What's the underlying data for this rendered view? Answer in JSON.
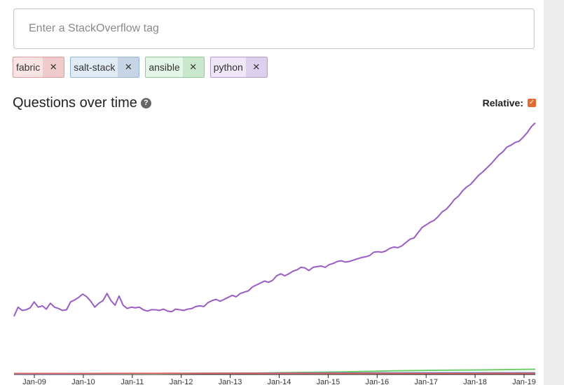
{
  "search": {
    "placeholder": "Enter a StackOverflow tag"
  },
  "tags": [
    {
      "label": "fabric",
      "remove": "✕",
      "color": "#e39a9a"
    },
    {
      "label": "salt-stack",
      "remove": "✕",
      "color": "#8fb6e0"
    },
    {
      "label": "ansible",
      "remove": "✕",
      "color": "#86d38e"
    },
    {
      "label": "python",
      "remove": "✕",
      "color": "#b79ad8"
    }
  ],
  "chart_header": {
    "title": "Questions over time",
    "help_icon": "question-circle-icon",
    "relative_label": "Relative:",
    "relative_checked": true
  },
  "chart_data": {
    "type": "line",
    "title": "Questions over time",
    "xlabel": "",
    "ylabel": "",
    "x_ticks": [
      "Jan-09",
      "Jan-10",
      "Jan-11",
      "Jan-12",
      "Jan-13",
      "Jan-14",
      "Jan-15",
      "Jan-16",
      "Jan-17",
      "Jan-18",
      "Jan-19"
    ],
    "x_start": "2008-08",
    "grid": false,
    "series": [
      {
        "name": "python",
        "color": "#9b5cc6",
        "values": [
          8.8,
          10.2,
          9.7,
          9.8,
          10.1,
          11.0,
          10.2,
          10.4,
          9.9,
          10.8,
          10.2,
          10.0,
          9.7,
          9.8,
          11.0,
          11.3,
          11.7,
          12.2,
          11.8,
          11.1,
          10.2,
          10.8,
          11.2,
          12.3,
          11.2,
          10.5,
          11.9,
          10.5,
          10.0,
          10.2,
          10.1,
          10.2,
          9.8,
          9.6,
          9.8,
          9.8,
          9.7,
          9.9,
          9.6,
          9.5,
          9.9,
          9.8,
          9.7,
          9.9,
          10.0,
          10.3,
          10.4,
          10.3,
          10.9,
          11.2,
          11.4,
          11.1,
          11.4,
          11.7,
          12.0,
          11.8,
          12.3,
          12.5,
          12.7,
          13.3,
          13.6,
          13.9,
          14.2,
          14.0,
          14.3,
          15.0,
          15.3,
          15.0,
          15.3,
          15.7,
          15.9,
          16.3,
          16.2,
          15.8,
          16.3,
          16.4,
          16.5,
          16.3,
          16.7,
          16.9,
          17.2,
          17.3,
          17.1,
          17.2,
          17.4,
          17.6,
          17.8,
          17.9,
          18.1,
          18.6,
          18.7,
          18.6,
          18.8,
          19.2,
          19.4,
          19.3,
          19.6,
          20.1,
          20.6,
          20.8,
          21.6,
          22.4,
          22.8,
          23.2,
          23.5,
          24.1,
          24.8,
          25.2,
          25.9,
          26.7,
          27.2,
          28.0,
          28.6,
          29.0,
          29.7,
          30.4,
          30.9,
          31.5,
          32.1,
          32.8,
          33.5,
          34.0,
          34.7,
          35.0,
          35.4,
          35.6,
          36.2,
          36.9,
          37.8,
          38.4
        ]
      },
      {
        "name": "ansible",
        "color": "#6ccf6c",
        "values": [
          0.0,
          0.0,
          0.0,
          0.0,
          0.05,
          0.1,
          0.2,
          0.3,
          0.45,
          0.55,
          0.6,
          0.7
        ]
      },
      {
        "name": "salt-stack",
        "color": "#4a78c8",
        "values": [
          0.0,
          0.0,
          0.02,
          0.05,
          0.08,
          0.1,
          0.12,
          0.13,
          0.14,
          0.15,
          0.15,
          0.15
        ]
      },
      {
        "name": "fabric",
        "color": "#e06666",
        "values": [
          0.05,
          0.05,
          0.06,
          0.06,
          0.06,
          0.06,
          0.06,
          0.06,
          0.05,
          0.05,
          0.05,
          0.05
        ]
      }
    ]
  }
}
